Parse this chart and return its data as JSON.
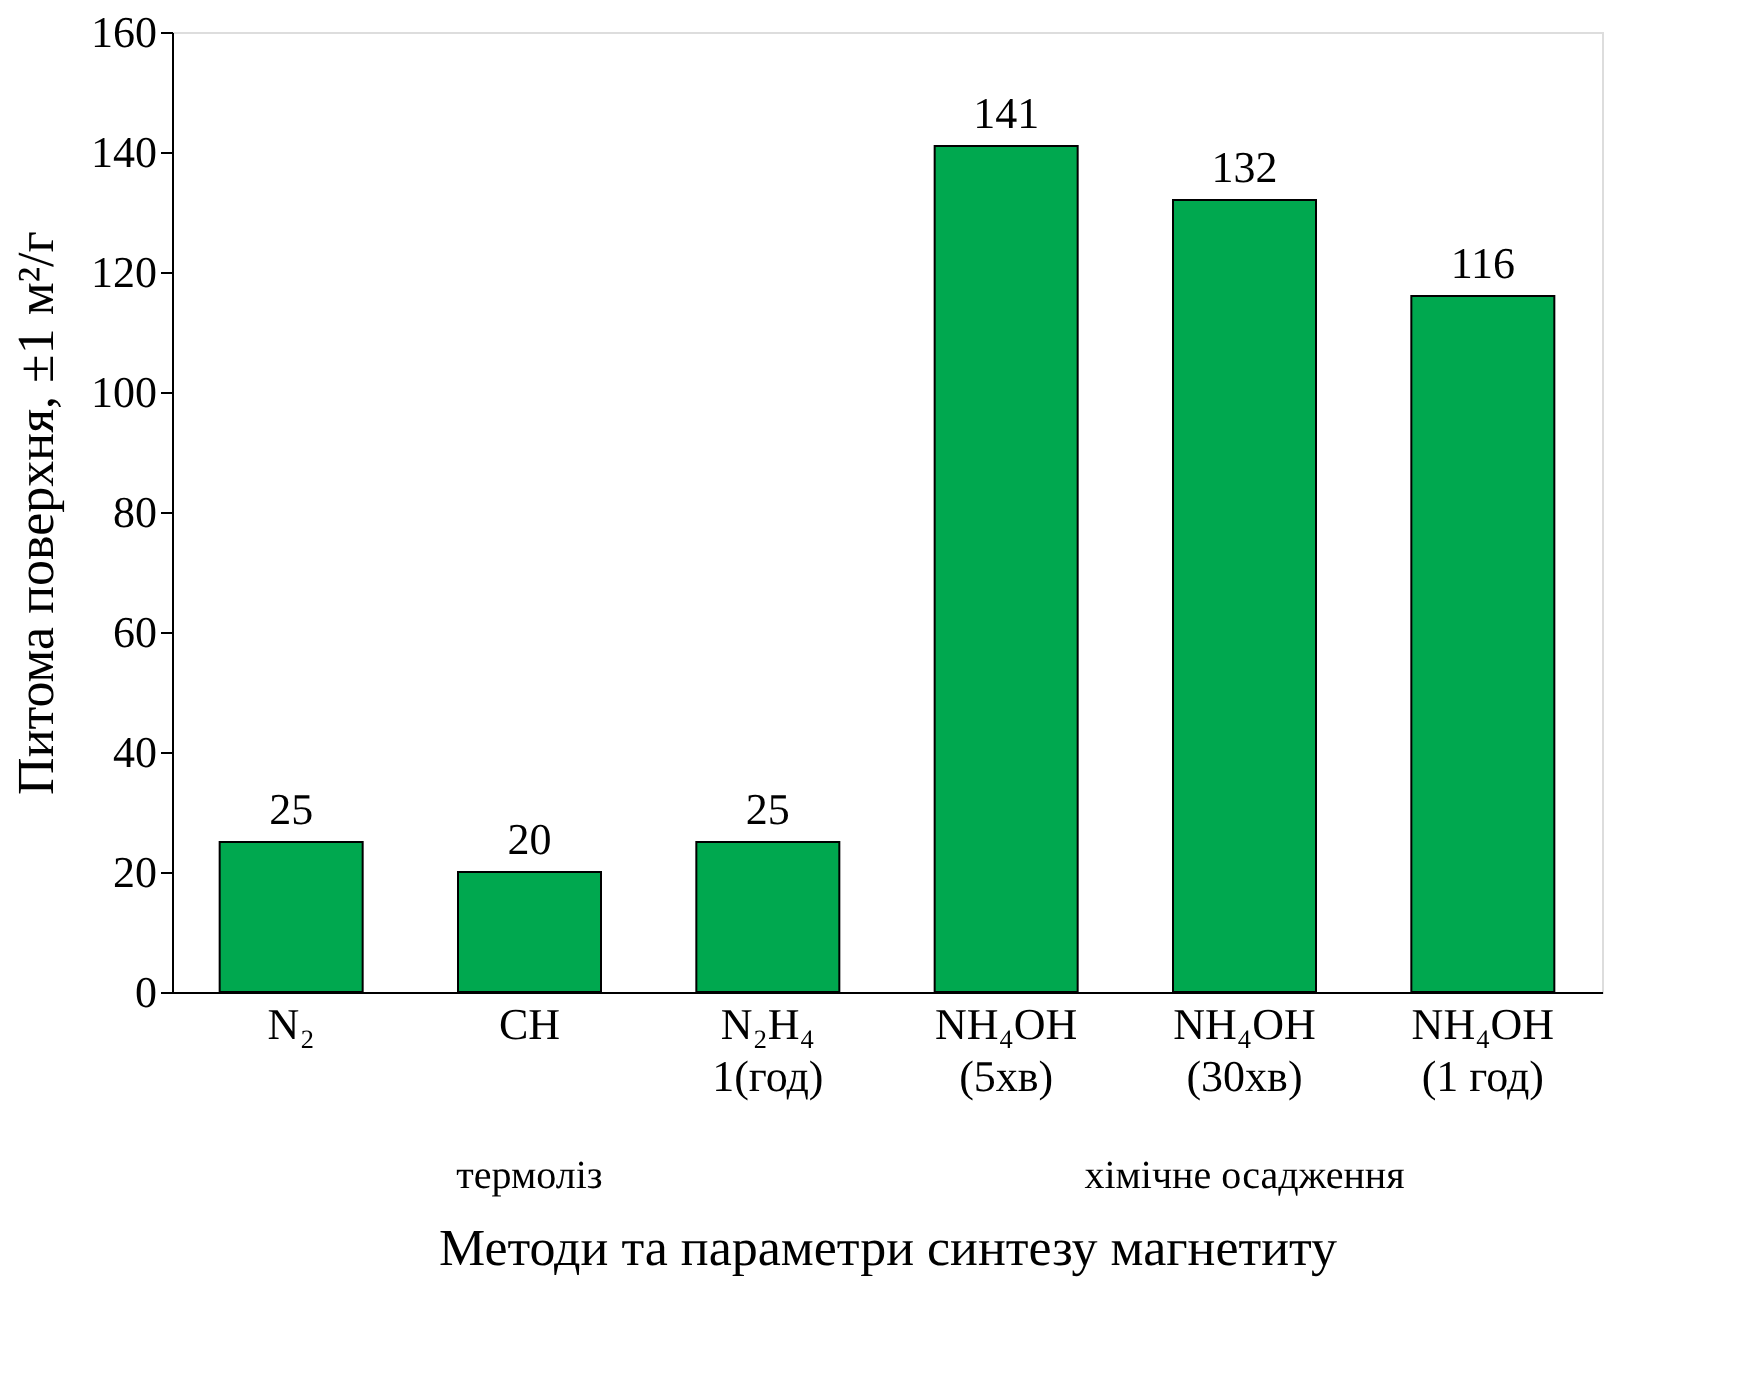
{
  "chart_data": {
    "type": "bar",
    "categories": [
      "N₂",
      "CH",
      "N₂H₄\n1(год)",
      "NH₄OH\n(5хв)",
      "NH₄OH\n(30хв)",
      "NH₄OH\n(1 год)"
    ],
    "values": [
      25,
      20,
      25,
      141,
      132,
      116
    ],
    "color": "#00a84f",
    "data_labels": true,
    "ylim": [
      0,
      160
    ],
    "yticks": [
      0,
      20,
      40,
      60,
      80,
      100,
      120,
      140,
      160
    ],
    "grid": false,
    "xlabel": "Методи та параметри синтезу магнетиту",
    "ylabel": "Питома поверхня, ±1 м²/г",
    "annotations": [
      "термоліз",
      "хімічне  осадження"
    ]
  }
}
